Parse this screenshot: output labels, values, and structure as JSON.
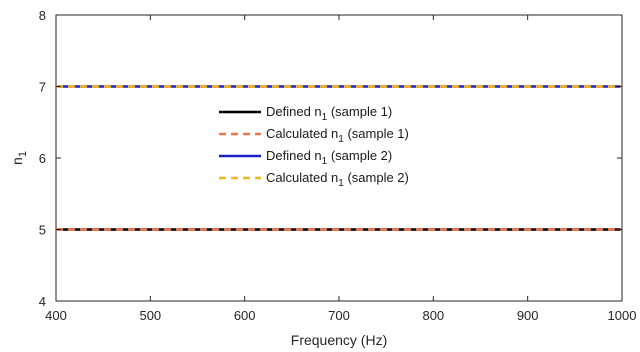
{
  "chart_data": {
    "type": "line",
    "title": "",
    "xlabel": "Frequency (Hz)",
    "ylabel": {
      "base": "n",
      "sub": "1"
    },
    "xlim": [
      400,
      1000
    ],
    "ylim": [
      4,
      8
    ],
    "xticks": [
      400,
      500,
      600,
      700,
      800,
      900,
      1000
    ],
    "yticks": [
      4,
      5,
      6,
      7,
      8
    ],
    "grid": false,
    "legend_position": "center",
    "series": [
      {
        "name": {
          "pre": "Defined n",
          "sub": "1",
          "post": " (sample 1)"
        },
        "x": [
          400,
          1000
        ],
        "y": [
          5,
          5
        ],
        "color": "#000000",
        "dash": "solid"
      },
      {
        "name": {
          "pre": "Calculated n",
          "sub": "1",
          "post": " (sample 1)"
        },
        "x": [
          400,
          1000
        ],
        "y": [
          5,
          5
        ],
        "color": "#f0764a",
        "dash": "dashed"
      },
      {
        "name": {
          "pre": "Defined n",
          "sub": "1",
          "post": " (sample 2)"
        },
        "x": [
          400,
          1000
        ],
        "y": [
          7,
          7
        ],
        "color": "#1a22c8",
        "dash": "solid"
      },
      {
        "name": {
          "pre": "Calculated n",
          "sub": "1",
          "post": " (sample 2)"
        },
        "x": [
          400,
          1000
        ],
        "y": [
          7,
          7
        ],
        "color": "#f2b81f",
        "dash": "dashed"
      }
    ]
  }
}
